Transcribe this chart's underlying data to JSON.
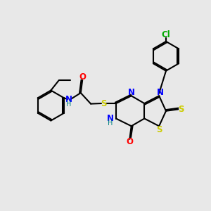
{
  "background_color": "#e8e8e8",
  "bond_color": "#000000",
  "atom_colors": {
    "N": "#0000ff",
    "O": "#ff0000",
    "S": "#cccc00",
    "Cl": "#00aa00",
    "H": "#008080",
    "C": "#000000"
  }
}
